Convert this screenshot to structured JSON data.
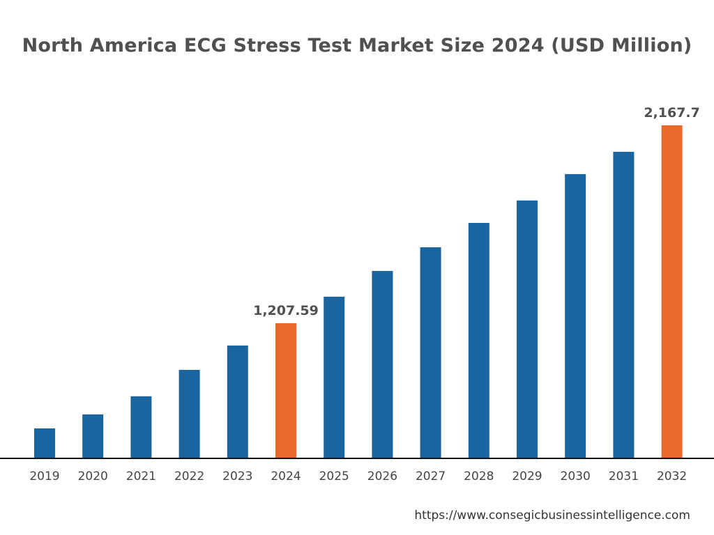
{
  "chart_data": {
    "type": "bar",
    "title": "North America ECG Stress Test Market Size 2024 (USD Million)",
    "xlabel": "",
    "ylabel": "",
    "categories": [
      "2019",
      "2020",
      "2021",
      "2022",
      "2023",
      "2024",
      "2025",
      "2026",
      "2027",
      "2028",
      "2029",
      "2030",
      "2031",
      "2032"
    ],
    "values": [
      697,
      765,
      853,
      981,
      1099,
      1207.59,
      1336,
      1461,
      1576,
      1694,
      1803,
      1931,
      2039,
      2167.7
    ],
    "data_labels": {
      "2024": "1,207.59",
      "2032": "2,167.7"
    },
    "highlighted": [
      "2024",
      "2032"
    ],
    "ylim": [
      555,
      2370
    ],
    "grid": false,
    "colors": {
      "default": "#1a64a0",
      "highlight": "#e8692a",
      "axis": "#111111"
    }
  },
  "footer": {
    "url": "https://www.consegicbusinessintelligence.com"
  }
}
